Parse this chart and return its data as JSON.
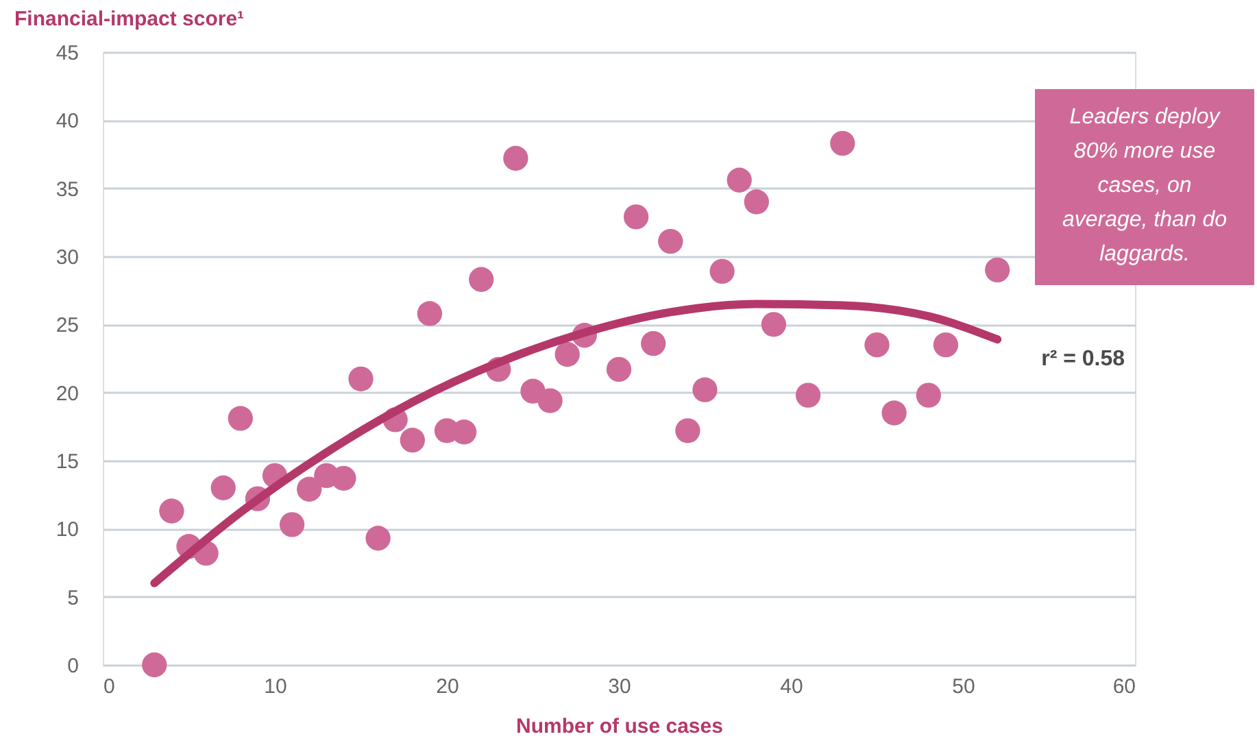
{
  "chart_data": {
    "type": "scatter",
    "ylabel": "Financial-impact score¹",
    "xlabel": "Number of use cases",
    "xlim": [
      0,
      60
    ],
    "xticks": [
      0,
      10,
      20,
      30,
      40,
      50,
      60
    ],
    "ylim": [
      0,
      45
    ],
    "yticks": [
      0,
      5,
      10,
      15,
      20,
      25,
      30,
      35,
      40,
      45
    ],
    "grid": "y",
    "series": [
      {
        "color": "#cf6a98",
        "marker": "circle",
        "x": [
          3,
          4,
          5,
          6,
          7,
          8,
          9,
          10,
          11,
          12,
          13,
          14,
          15,
          16,
          17,
          18,
          19,
          20,
          21,
          22,
          23,
          24,
          25,
          26,
          27,
          28,
          30,
          31,
          32,
          33,
          34,
          35,
          36,
          37,
          38,
          39,
          41,
          43,
          45,
          46,
          48,
          49,
          52
        ],
        "values": [
          0,
          11.3,
          8.7,
          8.2,
          13.0,
          18.1,
          12.2,
          13.9,
          10.3,
          12.9,
          13.9,
          13.7,
          21.0,
          9.3,
          18.0,
          16.5,
          25.8,
          17.2,
          17.1,
          28.3,
          21.7,
          37.2,
          20.1,
          19.4,
          22.8,
          24.2,
          21.7,
          32.9,
          23.6,
          31.1,
          17.2,
          20.2,
          28.9,
          35.6,
          34.0,
          25.0,
          19.8,
          38.3,
          23.5,
          18.5,
          19.8,
          23.5,
          29.0
        ]
      },
      {
        "type": "line",
        "color": "#b5386a",
        "line_style": "solid",
        "marker": "none",
        "x": [
          3,
          8,
          13,
          18,
          23,
          28,
          33,
          38,
          43,
          48,
          52
        ],
        "values": [
          6.0,
          11.2,
          15.6,
          19.3,
          22.2,
          24.4,
          25.9,
          26.5,
          26.4,
          25.6,
          23.9
        ]
      }
    ],
    "annotations": [
      "Leaders deploy 80% more use cases, on average, than do laggards.",
      {
        "text": "r² = 0.58",
        "x": 52,
        "y": 23.9
      }
    ]
  }
}
